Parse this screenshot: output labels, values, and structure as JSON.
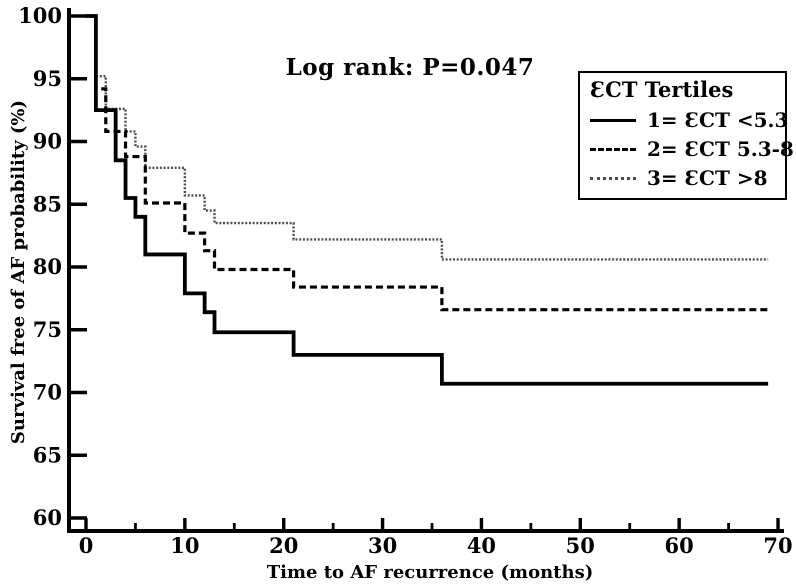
{
  "chart_data": {
    "type": "line",
    "subtype": "kaplan-meier-step-survival",
    "title": "",
    "annotation": "Log rank: P=0.047",
    "xlabel": "Time to AF recurrence (months)",
    "ylabel": "Survival free of AF probability (%)",
    "xlim": [
      0,
      70
    ],
    "ylim": [
      60,
      100
    ],
    "x_major_ticks": [
      0,
      10,
      20,
      30,
      40,
      50,
      60,
      70
    ],
    "x_minor_ticks": [
      5,
      15,
      25,
      35,
      45,
      55,
      65
    ],
    "y_ticks": [
      60,
      65,
      70,
      75,
      80,
      85,
      90,
      95,
      100
    ],
    "grid": "off",
    "legend": {
      "title": "ƐCT Tertiles",
      "position": "top-right"
    },
    "series": [
      {
        "name": "1= ƐCT <5.3",
        "style": "solid",
        "color": "#000000",
        "width": 3.8,
        "start": 100,
        "end_month": 69,
        "drops": [
          [
            1,
            92.5
          ],
          [
            3,
            88.5
          ],
          [
            4,
            85.5
          ],
          [
            5,
            84.0
          ],
          [
            6,
            81.0
          ],
          [
            10,
            77.9
          ],
          [
            12,
            76.4
          ],
          [
            13,
            74.8
          ],
          [
            21,
            73.0
          ],
          [
            36,
            70.7
          ]
        ]
      },
      {
        "name": "2= ƐCT 5.3-8",
        "style": "dashed",
        "color": "#000000",
        "width": 3.2,
        "start": 100,
        "end_month": 69,
        "drops": [
          [
            1,
            94.2
          ],
          [
            2,
            90.8
          ],
          [
            4,
            88.8
          ],
          [
            6,
            85.1
          ],
          [
            10,
            82.7
          ],
          [
            12,
            81.3
          ],
          [
            13,
            79.8
          ],
          [
            21,
            78.4
          ],
          [
            36,
            76.6
          ]
        ]
      },
      {
        "name": "3= ƐCT >8",
        "style": "dotted",
        "color": "#4d4d4d",
        "width": 2.4,
        "start": 100,
        "end_month": 69,
        "drops": [
          [
            1,
            95.2
          ],
          [
            2,
            92.6
          ],
          [
            4,
            90.8
          ],
          [
            5,
            89.6
          ],
          [
            6,
            87.9
          ],
          [
            10,
            85.7
          ],
          [
            12,
            84.5
          ],
          [
            13,
            83.5
          ],
          [
            21,
            82.2
          ],
          [
            36,
            80.6
          ]
        ]
      }
    ]
  }
}
